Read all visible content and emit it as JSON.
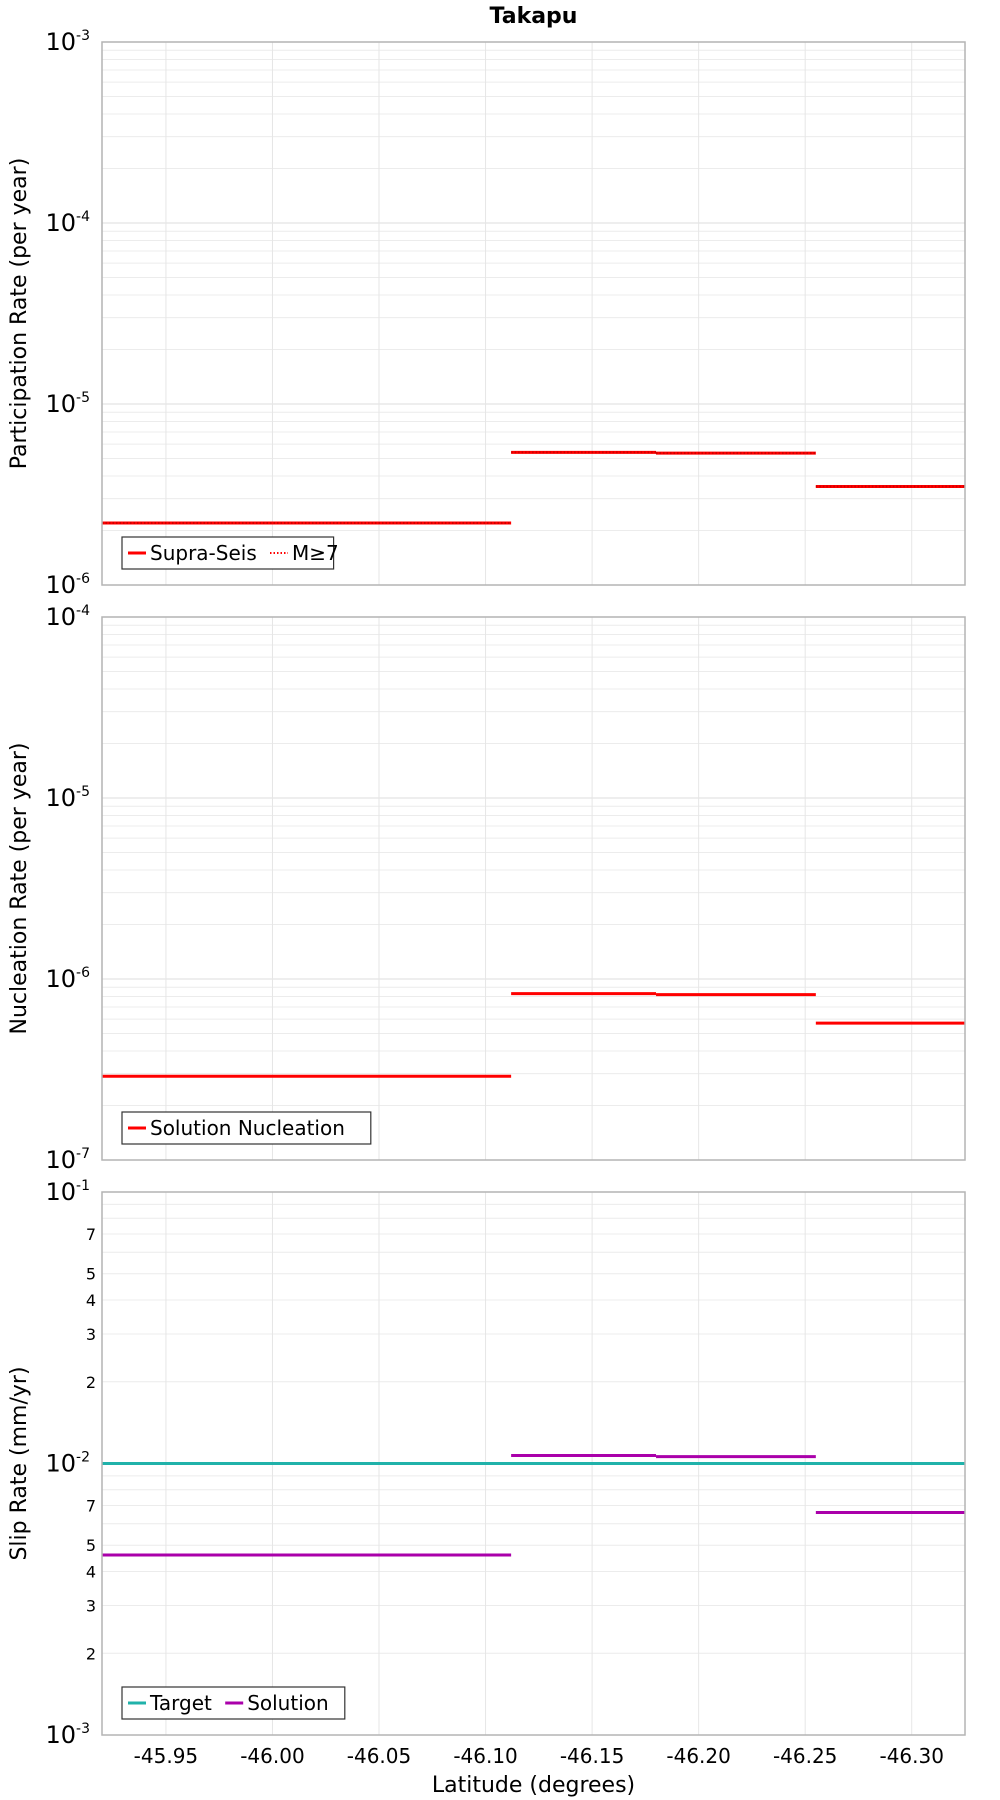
{
  "title": "Takapu",
  "xlabel": "Latitude (degrees)",
  "chart_data": [
    {
      "type": "line",
      "ylabel": "Participation Rate (per year)",
      "yscale": "log",
      "ylim": [
        1e-06,
        0.001
      ],
      "xlim": [
        -45.92,
        -46.325
      ],
      "x_ticks": [
        "-45.95",
        "-46.00",
        "-46.05",
        "-46.10",
        "-46.15",
        "-46.20",
        "-46.25",
        "-46.30"
      ],
      "y_ticks": [
        {
          "base": "10",
          "exp": "-6"
        },
        {
          "base": "10",
          "exp": "-5"
        },
        {
          "base": "10",
          "exp": "-4"
        },
        {
          "base": "10",
          "exp": "-3"
        }
      ],
      "grid": true,
      "legend": [
        "Supra-Seis",
        "M≥7"
      ],
      "legend_position": "bottom-left",
      "series": [
        {
          "name": "Supra-Seis",
          "color": "#ff0000",
          "style": "solid",
          "segments": [
            {
              "x": [
                -45.92,
                -46.112
              ],
              "y": 2.2e-06
            },
            {
              "x": [
                -46.112,
                -46.18
              ],
              "y": 5.4e-06
            },
            {
              "x": [
                -46.18,
                -46.255
              ],
              "y": 5.35e-06
            },
            {
              "x": [
                -46.255,
                -46.325
              ],
              "y": 3.5e-06
            }
          ]
        },
        {
          "name": "M≥7",
          "color": "#ff0000",
          "style": "dotted",
          "segments": [
            {
              "x": [
                -45.92,
                -46.112
              ],
              "y": 2.2e-06
            },
            {
              "x": [
                -46.112,
                -46.18
              ],
              "y": 5.4e-06
            },
            {
              "x": [
                -46.18,
                -46.255
              ],
              "y": 5.35e-06
            },
            {
              "x": [
                -46.255,
                -46.325
              ],
              "y": 3.5e-06
            }
          ]
        }
      ]
    },
    {
      "type": "line",
      "ylabel": "Nucleation Rate (per year)",
      "yscale": "log",
      "ylim": [
        1e-07,
        0.0001
      ],
      "xlim": [
        -45.92,
        -46.325
      ],
      "y_ticks": [
        {
          "base": "10",
          "exp": "-7"
        },
        {
          "base": "10",
          "exp": "-6"
        },
        {
          "base": "10",
          "exp": "-5"
        },
        {
          "base": "10",
          "exp": "-4"
        }
      ],
      "grid": true,
      "legend": [
        "Solution Nucleation"
      ],
      "legend_position": "bottom-left",
      "series": [
        {
          "name": "Solution Nucleation",
          "color": "#ff0000",
          "style": "solid",
          "segments": [
            {
              "x": [
                -45.92,
                -46.112
              ],
              "y": 2.9e-07
            },
            {
              "x": [
                -46.112,
                -46.18
              ],
              "y": 8.3e-07
            },
            {
              "x": [
                -46.18,
                -46.255
              ],
              "y": 8.2e-07
            },
            {
              "x": [
                -46.255,
                -46.325
              ],
              "y": 5.7e-07
            }
          ]
        }
      ]
    },
    {
      "type": "line",
      "ylabel": "Slip Rate (mm/yr)",
      "yscale": "log",
      "ylim": [
        0.001,
        0.1
      ],
      "xlim": [
        -45.92,
        -46.325
      ],
      "y_ticks": [
        {
          "base": "10",
          "exp": "-3"
        },
        {
          "base": "10",
          "exp": "-2"
        },
        {
          "base": "10",
          "exp": "-1"
        }
      ],
      "y_minor_labels": [
        "2",
        "3",
        "4",
        "5",
        "7",
        "2",
        "3",
        "4",
        "5",
        "7"
      ],
      "grid": true,
      "legend": [
        "Target",
        "Solution"
      ],
      "legend_position": "bottom-left",
      "series": [
        {
          "name": "Target",
          "color": "#20b2aa",
          "style": "solid",
          "segments": [
            {
              "x": [
                -45.92,
                -46.325
              ],
              "y": 0.01
            }
          ]
        },
        {
          "name": "Solution",
          "color": "#aa00aa",
          "style": "solid",
          "segments": [
            {
              "x": [
                -45.92,
                -46.112
              ],
              "y": 0.0046
            },
            {
              "x": [
                -46.112,
                -46.18
              ],
              "y": 0.0107
            },
            {
              "x": [
                -46.18,
                -46.255
              ],
              "y": 0.0106
            },
            {
              "x": [
                -46.255,
                -46.325
              ],
              "y": 0.0066
            }
          ]
        }
      ]
    }
  ]
}
